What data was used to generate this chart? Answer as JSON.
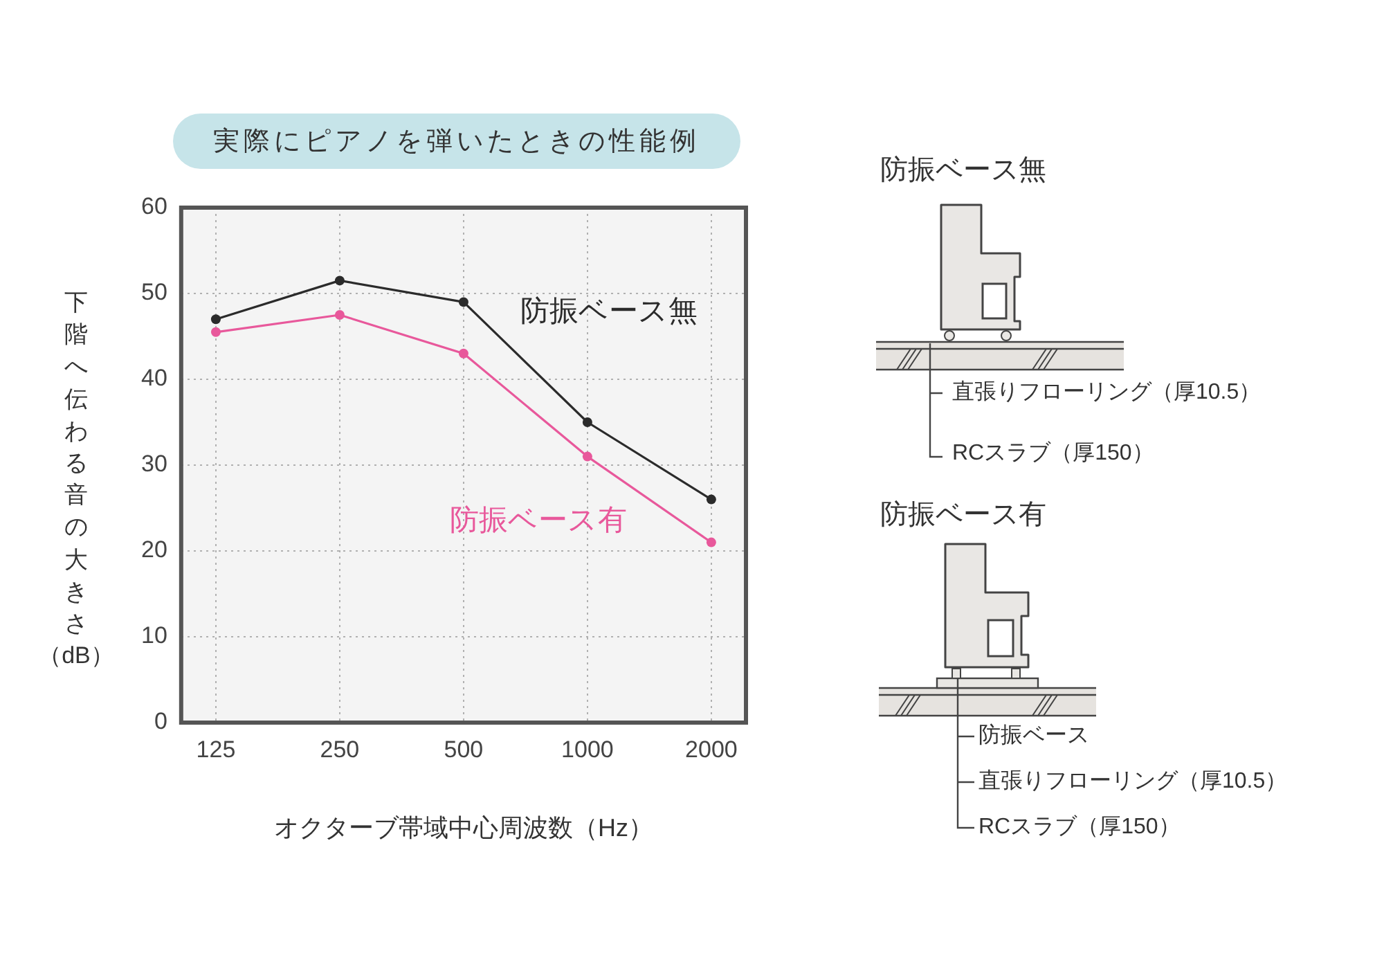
{
  "chart_data": {
    "type": "line",
    "title": "実際にピアノを弾いたときの性能例",
    "xlabel": "オクターブ帯域中心周波数（Hz）",
    "ylabel": "下階へ伝わる音の大きさ（dB）",
    "categories": [
      "125",
      "250",
      "500",
      "1000",
      "2000"
    ],
    "series": [
      {
        "name": "防振ベース無",
        "color": "#2b2b2b",
        "values": [
          47,
          51.5,
          49,
          35,
          26
        ]
      },
      {
        "name": "防振ベース有",
        "color": "#e8589b",
        "values": [
          45.5,
          47.5,
          43,
          31,
          21
        ]
      }
    ],
    "ylim": [
      0,
      60
    ],
    "yticks": [
      0,
      10,
      20,
      30,
      40,
      50,
      60
    ],
    "grid": true,
    "marker": "circle",
    "line_style": "solid",
    "annotations": [
      "防振ベース無",
      "直張りフローリング（厚10.5）",
      "RCスラブ（厚150）",
      "防振ベース有",
      "防振ベース",
      "直張りフローリング（厚10.5）",
      "RCスラブ（厚150）"
    ]
  }
}
